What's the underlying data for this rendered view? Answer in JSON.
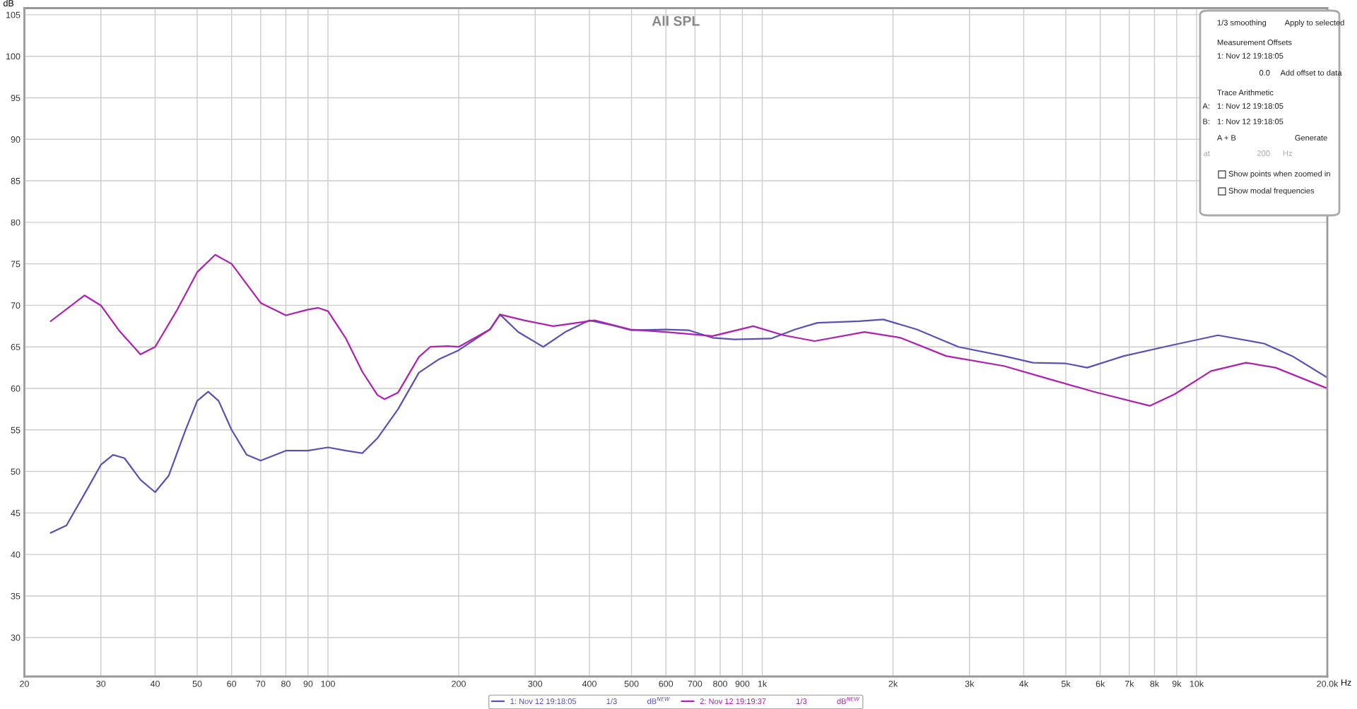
{
  "chart_data": {
    "type": "line",
    "title": "All SPL",
    "ylabel": "dB",
    "xlabel": "Hz",
    "log": "x",
    "grid": true,
    "legend": "bottom",
    "line_style": "solid",
    "marker": "none",
    "xlim": [
      20,
      20000
    ],
    "ylim": [
      25.3,
      105.8
    ],
    "xticks": [
      20,
      30,
      40,
      50,
      60,
      70,
      80,
      90,
      100,
      200,
      300,
      400,
      500,
      600,
      700,
      800,
      900,
      {
        "value": 1000,
        "label": "1k"
      },
      {
        "value": 2000,
        "label": "2k"
      },
      {
        "value": 3000,
        "label": "3k"
      },
      {
        "value": 4000,
        "label": "4k"
      },
      {
        "value": 5000,
        "label": "5k"
      },
      {
        "value": 6000,
        "label": "6k"
      },
      {
        "value": 7000,
        "label": "7k"
      },
      {
        "value": 8000,
        "label": "8k"
      },
      {
        "value": 9000,
        "label": "9k"
      },
      {
        "value": 10000,
        "label": "10k"
      },
      {
        "value": 20000,
        "label": "20.0k"
      }
    ],
    "yticks": [
      30,
      35,
      40,
      45,
      50,
      55,
      60,
      65,
      70,
      75,
      80,
      85,
      90,
      95,
      100,
      105
    ],
    "series": [
      {
        "name": "1: Nov 12 19:18:05",
        "color": "#5a50b8",
        "x": [
          23,
          25,
          28,
          30,
          32,
          34,
          37,
          40,
          43,
          47,
          50,
          53,
          56,
          60,
          65,
          70,
          80,
          90,
          100,
          110,
          120,
          130,
          145,
          162,
          180,
          200,
          236,
          249,
          274,
          313,
          352,
          400,
          452,
          500,
          599,
          678,
          768,
          862,
          1047,
          1190,
          1340,
          1670,
          1900,
          2270,
          2830,
          3600,
          4200,
          5000,
          5600,
          6800,
          8600,
          11200,
          14300,
          16600,
          20000
        ],
        "values": [
          42.6,
          43.5,
          48,
          50.8,
          52,
          51.6,
          49,
          47.5,
          49.5,
          55,
          58.5,
          59.6,
          58.5,
          55,
          52,
          51.3,
          52.5,
          52.5,
          52.9,
          52.5,
          52.2,
          54,
          57.5,
          61.9,
          63.5,
          64.6,
          67.1,
          68.9,
          66.8,
          65.0,
          66.8,
          68.2,
          67.6,
          67.0,
          67.1,
          67.0,
          66.1,
          65.9,
          66.0,
          67.1,
          67.9,
          68.1,
          68.3,
          67.1,
          65.0,
          63.9,
          63.1,
          63.0,
          62.5,
          63.9,
          65.1,
          66.4,
          65.4,
          63.9,
          61.3
        ]
      },
      {
        "name": "2: Nov 12 19:19:37",
        "color": "#b020b0",
        "x": [
          23,
          27.5,
          30,
          33,
          37,
          40,
          45,
          50,
          55,
          60,
          70,
          80,
          90,
          95,
          100,
          110,
          120,
          130,
          135,
          145,
          162,
          172,
          189,
          200,
          236,
          249,
          283,
          330,
          411,
          497,
          599,
          768,
          953,
          1120,
          1320,
          1720,
          2080,
          2650,
          3600,
          4600,
          5800,
          7800,
          8900,
          10800,
          13000,
          15200,
          20000
        ],
        "values": [
          68.1,
          71.2,
          70,
          67,
          64.1,
          65,
          69.5,
          74,
          76.1,
          75,
          70.3,
          68.8,
          69.5,
          69.7,
          69.3,
          66,
          62,
          59.2,
          58.7,
          59.5,
          63.8,
          65.0,
          65.1,
          65.0,
          67.1,
          68.9,
          68.2,
          67.5,
          68.2,
          67.1,
          66.8,
          66.3,
          67.5,
          66.4,
          65.7,
          66.8,
          66.1,
          63.9,
          62.7,
          61.1,
          59.6,
          57.9,
          59.3,
          62.1,
          63.1,
          62.5,
          60.0
        ]
      }
    ],
    "annotations": [
      "1/3 smoothing",
      "Apply to selected",
      "Measurement Offsets",
      "1: Nov 12 19:18:05",
      "0.0",
      "Add offset to data",
      "Trace Arithmetic",
      "A:",
      "1: Nov 12 19:18:05",
      "B:",
      "1: Nov 12 19:18:05",
      "A + B",
      "Generate",
      "at",
      "200",
      "Hz",
      "Show points when zoomed in",
      "Show modal frequencies",
      "1/3",
      "dB$^{NEW}$",
      "1/3",
      "dB$^{NEW}$"
    ]
  }
}
